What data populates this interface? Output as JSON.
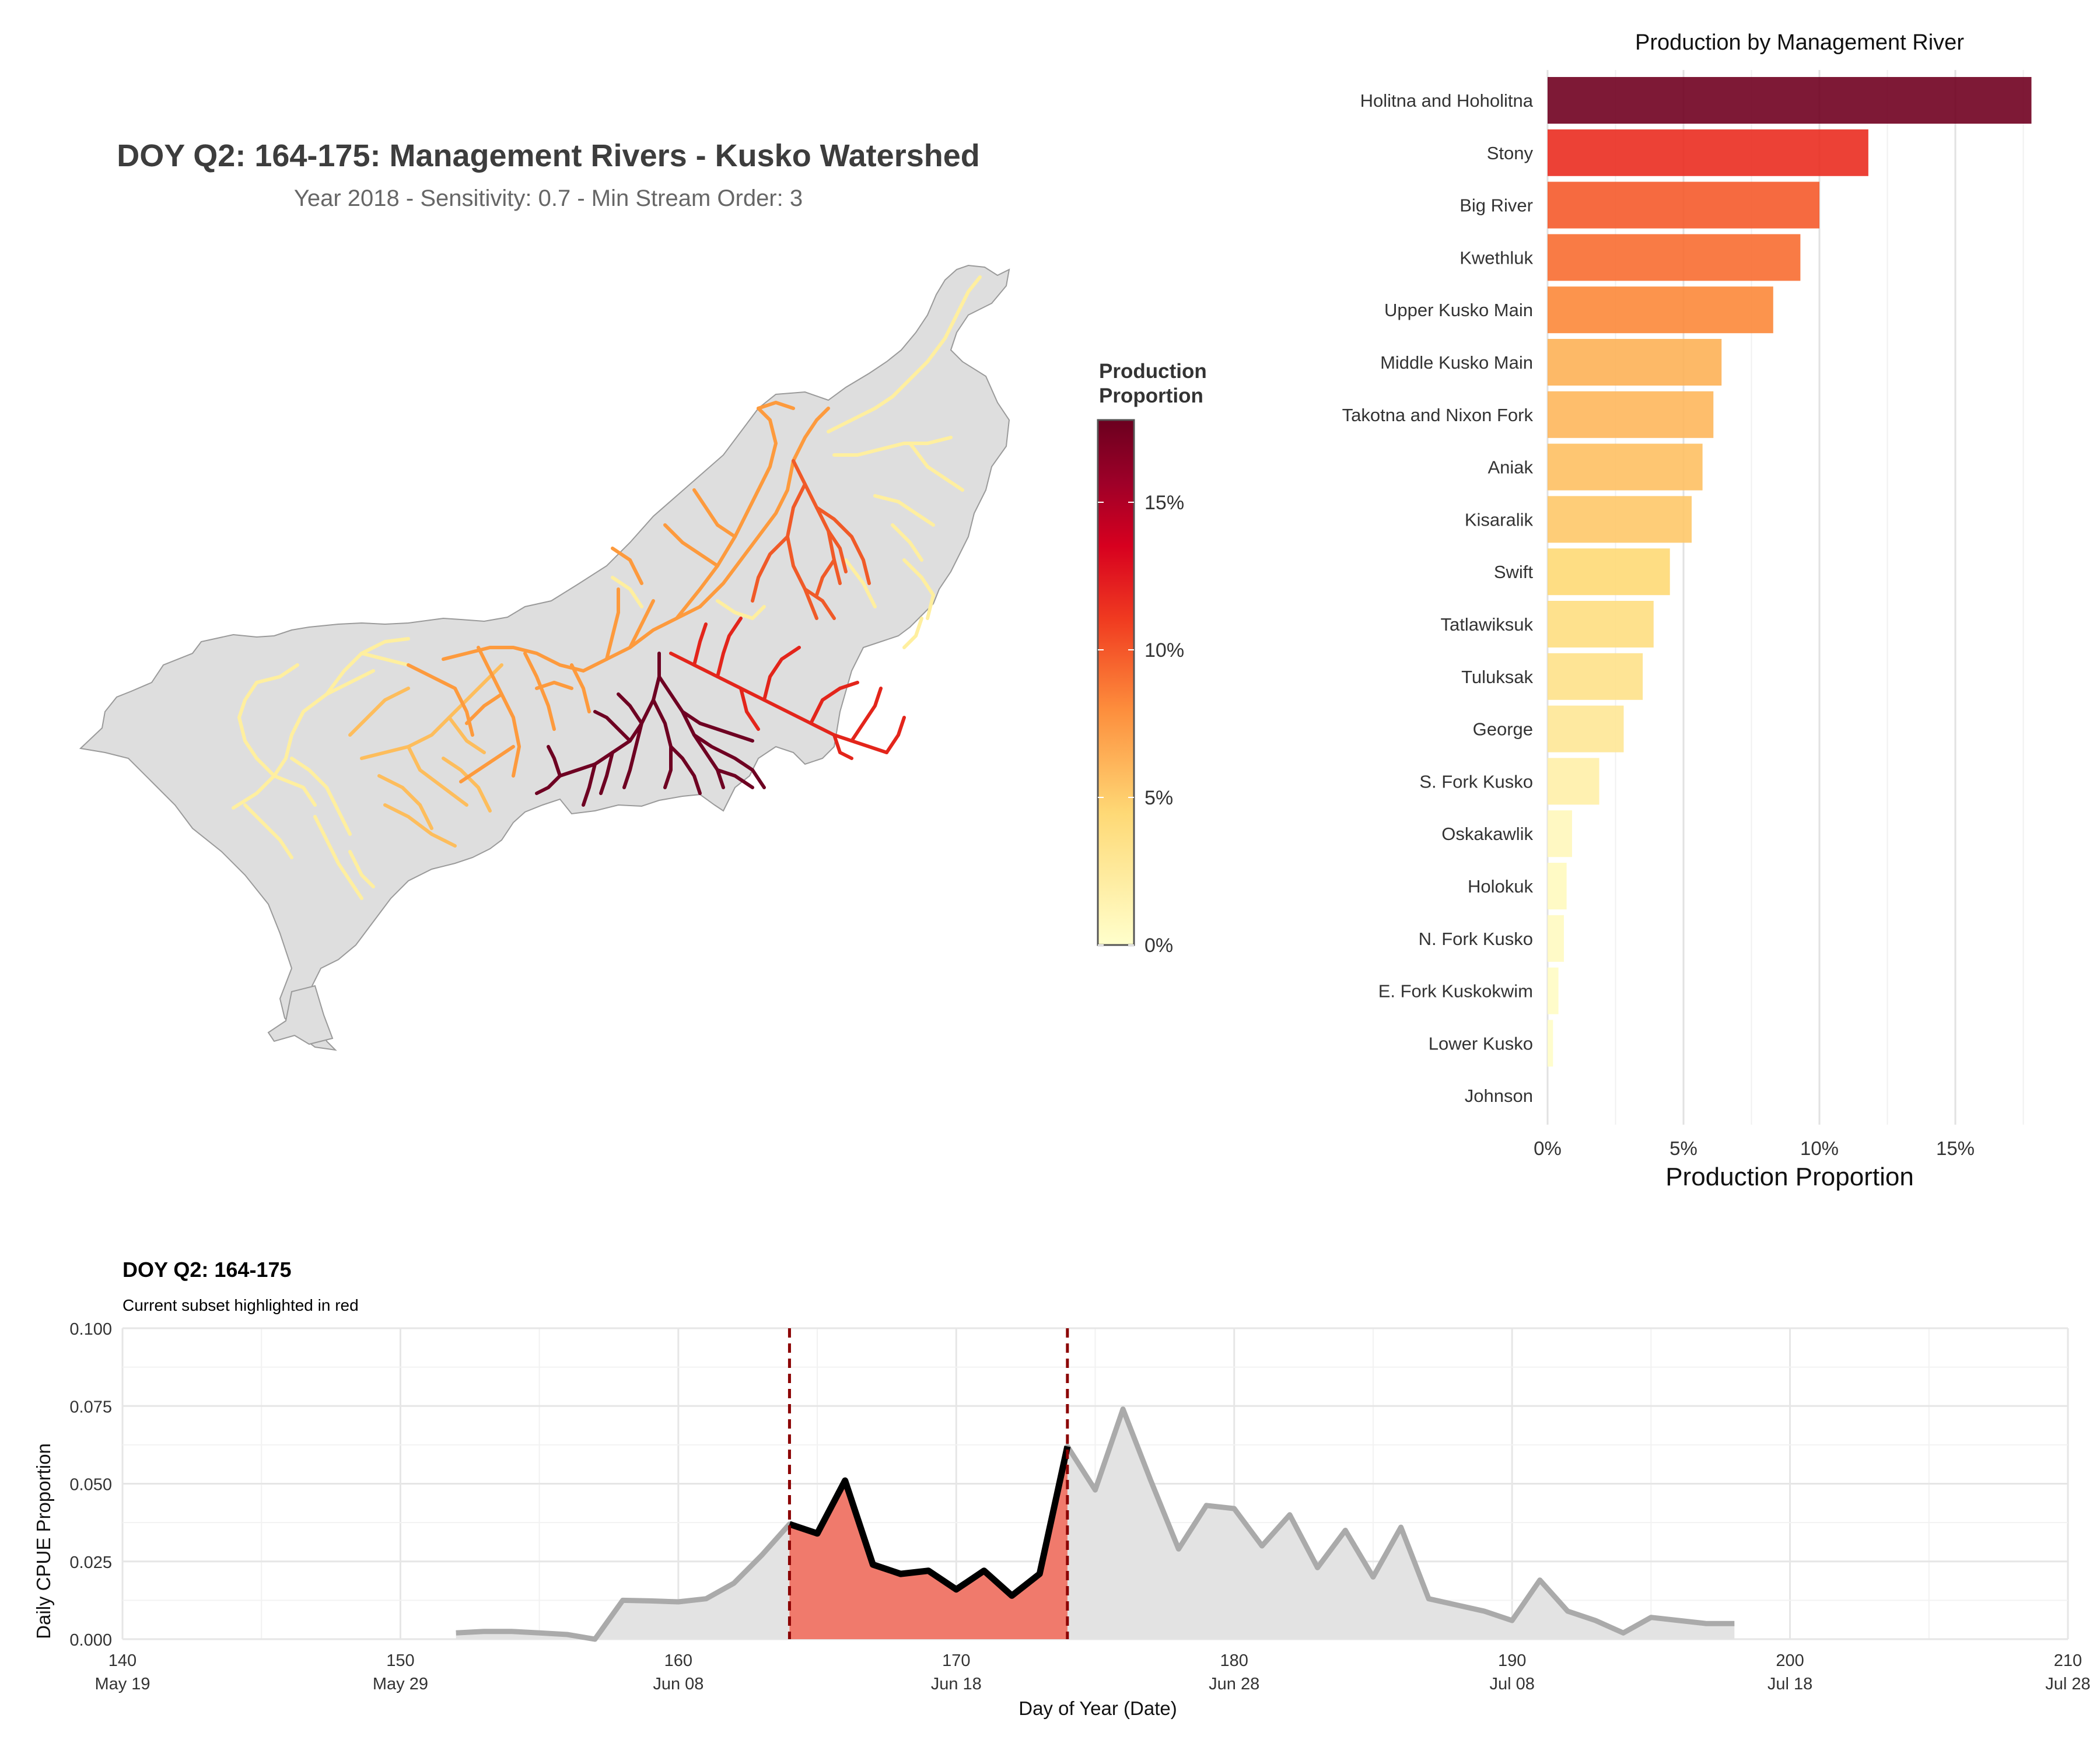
{
  "map": {
    "title": "DOY Q2: 164-175: Management Rivers - Kusko Watershed",
    "subtitle": "Year 2018 - Sensitivity: 0.7 - Min Stream Order: 3",
    "legend": {
      "title_line1": "Production",
      "title_line2": "Proportion",
      "ticks": [
        "0%",
        "5%",
        "10%",
        "15%"
      ],
      "colors": [
        "#ffffcc",
        "#fed976",
        "#fd8d3c",
        "#e31a1c",
        "#bd0026",
        "#800026",
        "#6b001f"
      ]
    }
  },
  "chart_data": [
    {
      "type": "bar",
      "orientation": "horizontal",
      "title": "Production by Management River",
      "xlabel": "Production Proportion",
      "ylabel": "",
      "xlim": [
        0,
        0.18
      ],
      "xticks": [
        "0%",
        "5%",
        "10%",
        "15%"
      ],
      "grid": true,
      "categories": [
        "Holitna and Hoholitna",
        "Stony",
        "Big River",
        "Kwethluk",
        "Upper Kusko Main",
        "Middle Kusko Main",
        "Takotna and Nixon Fork",
        "Aniak",
        "Kisaralik",
        "Swift",
        "Tatlawiksuk",
        "Tuluksak",
        "George",
        "S. Fork Kusko",
        "Oskakawlik",
        "Holokuk",
        "N. Fork Kusko",
        "E. Fork Kuskokwim",
        "Lower Kusko",
        "Johnson"
      ],
      "values": [
        0.178,
        0.118,
        0.1,
        0.093,
        0.083,
        0.064,
        0.061,
        0.057,
        0.053,
        0.045,
        0.039,
        0.035,
        0.028,
        0.019,
        0.009,
        0.007,
        0.006,
        0.004,
        0.002,
        0.0
      ]
    },
    {
      "type": "area",
      "title": "DOY Q2: 164-175",
      "subtitle": "Current subset highlighted in red",
      "xlabel": "Day of Year (Date)",
      "ylabel": "Daily CPUE Proportion",
      "xlim": [
        140,
        210
      ],
      "ylim": [
        0,
        0.1
      ],
      "xticks": [
        {
          "value": 140,
          "doy": "140",
          "date": "May 19"
        },
        {
          "value": 150,
          "doy": "150",
          "date": "May 29"
        },
        {
          "value": 160,
          "doy": "160",
          "date": "Jun 08"
        },
        {
          "value": 170,
          "doy": "170",
          "date": "Jun 18"
        },
        {
          "value": 180,
          "doy": "180",
          "date": "Jun 28"
        },
        {
          "value": 190,
          "doy": "190",
          "date": "Jul 08"
        },
        {
          "value": 200,
          "doy": "200",
          "date": "Jul 18"
        },
        {
          "value": 210,
          "doy": "210",
          "date": "Jul 28"
        }
      ],
      "yticks": [
        "0.000",
        "0.025",
        "0.050",
        "0.075",
        "0.100"
      ],
      "highlight_range": [
        164,
        174
      ],
      "colors": {
        "full_line": "#aaaaaa",
        "full_fill": "#e3e3e3",
        "subset_line": "#000000",
        "subset_fill": "#f07a6c",
        "vline": "#8b0000"
      },
      "x": [
        152,
        153,
        154,
        155,
        156,
        157,
        158,
        159,
        160,
        161,
        162,
        163,
        164,
        165,
        166,
        167,
        168,
        169,
        170,
        171,
        172,
        173,
        174,
        175,
        176,
        177,
        178,
        179,
        180,
        181,
        182,
        183,
        184,
        185,
        186,
        187,
        188,
        189,
        190,
        191,
        192,
        193,
        194,
        195,
        196,
        197,
        198
      ],
      "y": [
        0.002,
        0.0025,
        0.0025,
        0.002,
        0.0015,
        0.0,
        0.0125,
        0.0123,
        0.012,
        0.013,
        0.018,
        0.027,
        0.037,
        0.034,
        0.051,
        0.024,
        0.021,
        0.022,
        0.016,
        0.022,
        0.014,
        0.021,
        0.062,
        0.048,
        0.074,
        0.051,
        0.029,
        0.043,
        0.042,
        0.03,
        0.04,
        0.023,
        0.035,
        0.02,
        0.036,
        0.013,
        0.011,
        0.009,
        0.006,
        0.019,
        0.009,
        0.006,
        0.002,
        0.007,
        0.006,
        0.005,
        0.005
      ]
    }
  ]
}
